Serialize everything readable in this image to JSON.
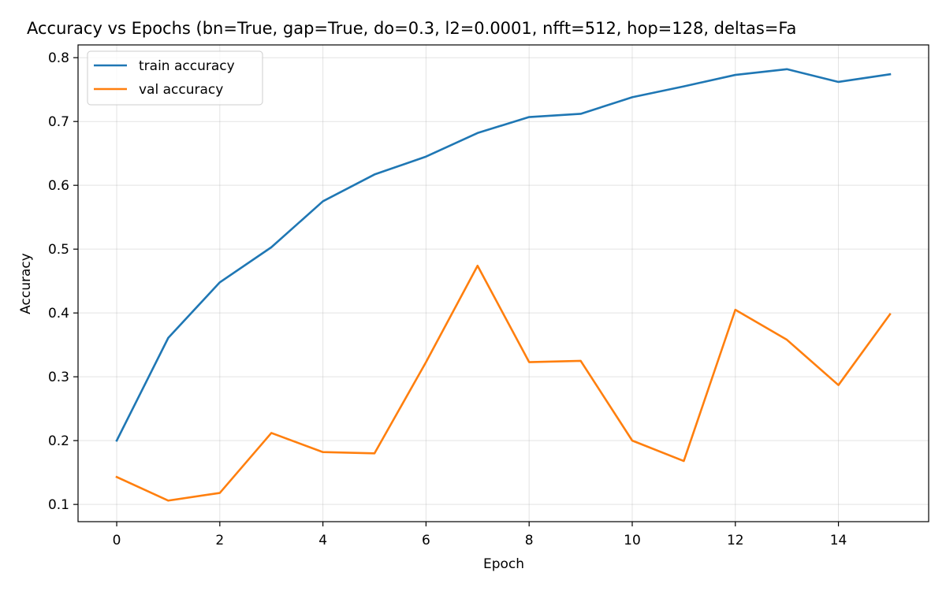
{
  "chart_data": {
    "type": "line",
    "title": "Accuracy vs Epochs (bn=True, gap=True, do=0.3, l2=0.0001, nfft=512, hop=128, deltas=Fa",
    "xlabel": "Epoch",
    "ylabel": "Accuracy",
    "xlim": [
      -0.75,
      15.75
    ],
    "ylim": [
      0.073,
      0.82
    ],
    "xticks": [
      0,
      2,
      4,
      6,
      8,
      10,
      12,
      14
    ],
    "yticks": [
      0.1,
      0.2,
      0.3,
      0.4,
      0.5,
      0.6,
      0.7,
      0.8
    ],
    "grid": true,
    "legend_position": "top-left",
    "x": [
      0,
      1,
      2,
      3,
      4,
      5,
      6,
      7,
      8,
      9,
      10,
      11,
      12,
      13,
      14,
      15
    ],
    "series": [
      {
        "name": "train accuracy",
        "color": "#1f77b4",
        "values": [
          0.2,
          0.361,
          0.448,
          0.503,
          0.575,
          0.617,
          0.645,
          0.682,
          0.707,
          0.712,
          0.738,
          0.755,
          0.773,
          0.782,
          0.762,
          0.774
        ]
      },
      {
        "name": "val accuracy",
        "color": "#ff7f0e",
        "values": [
          0.143,
          0.106,
          0.118,
          0.212,
          0.182,
          0.18,
          0.323,
          0.474,
          0.323,
          0.325,
          0.2,
          0.168,
          0.405,
          0.358,
          0.287,
          0.398
        ]
      }
    ]
  }
}
